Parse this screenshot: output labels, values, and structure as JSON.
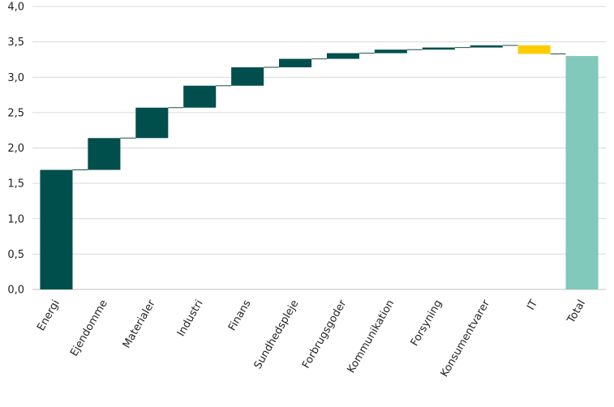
{
  "chart_data": {
    "type": "bar",
    "subtype": "waterfall",
    "categories": [
      "Energi",
      "Ejendomme",
      "Materialer",
      "Industri",
      "Finans",
      "Sundhedspleje",
      "Forbrugsgoder",
      "Kommunikation",
      "Forsyning",
      "Konsumentvarer",
      "IT",
      "Total"
    ],
    "values": [
      1.69,
      0.45,
      0.43,
      0.31,
      0.26,
      0.12,
      0.08,
      0.05,
      0.03,
      0.03,
      -0.12,
      3.3
    ],
    "ylim": [
      0,
      4
    ],
    "yticks": [
      "0,0",
      "0,5",
      "1,0",
      "1,5",
      "2,0",
      "2,5",
      "3,0",
      "3,5",
      "4,0"
    ],
    "grid": true,
    "legend": "none",
    "colors": {
      "positive": "#004f4d",
      "negative": "#ffcc00",
      "total": "#80c9bb",
      "connector": "#1f4f4a"
    }
  }
}
